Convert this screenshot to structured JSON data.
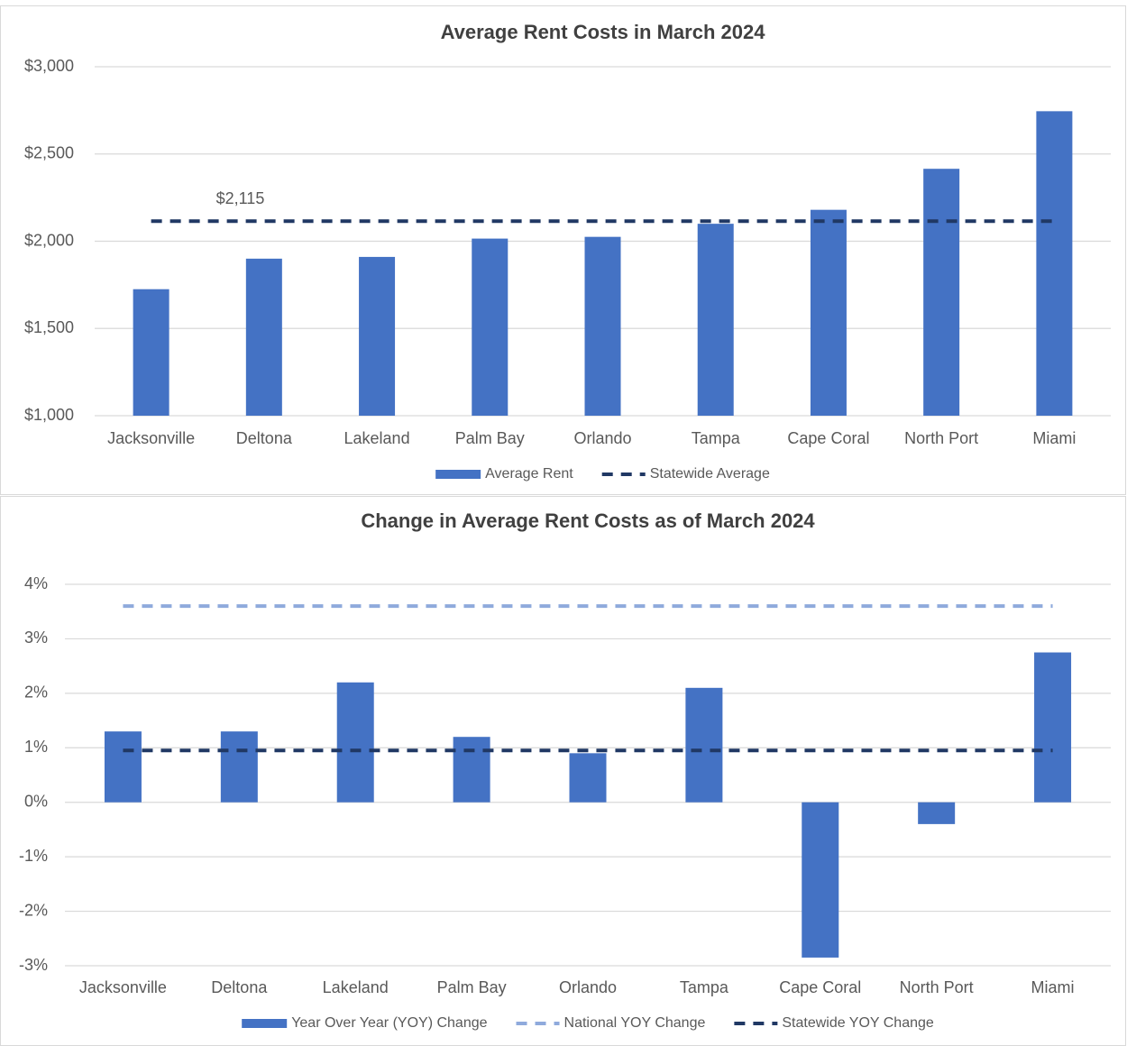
{
  "chart_data": [
    {
      "type": "bar",
      "title": "Average Rent Costs in March 2024",
      "categories": [
        "Jacksonville",
        "Deltona",
        "Lakeland",
        "Palm Bay",
        "Orlando",
        "Tampa",
        "Cape Coral",
        "North Port",
        "Miami"
      ],
      "series": [
        {
          "name": "Average Rent",
          "type": "bar",
          "color": "#4472c4",
          "values": [
            1725,
            1900,
            1910,
            2015,
            2025,
            2100,
            2180,
            2415,
            2745
          ]
        },
        {
          "name": "Statewide Average",
          "type": "line",
          "dashed": true,
          "color": "#203864",
          "values": [
            2115,
            2115,
            2115,
            2115,
            2115,
            2115,
            2115,
            2115,
            2115
          ]
        }
      ],
      "annotation": "$2,115",
      "ylim": [
        1000,
        3000
      ],
      "yticks": [
        {
          "value": 1000,
          "label": "$1,000"
        },
        {
          "value": 1500,
          "label": "$1,500"
        },
        {
          "value": 2000,
          "label": "$2,000"
        },
        {
          "value": 2500,
          "label": "$2,500"
        },
        {
          "value": 3000,
          "label": "$3,000"
        }
      ],
      "grid": true,
      "legend": "bottom"
    },
    {
      "type": "bar",
      "title": "Change in Average Rent Costs as of March 2024",
      "categories": [
        "Jacksonville",
        "Deltona",
        "Lakeland",
        "Palm Bay",
        "Orlando",
        "Tampa",
        "Cape Coral",
        "North Port",
        "Miami"
      ],
      "series": [
        {
          "name": "Year Over Year (YOY) Change",
          "type": "bar",
          "color": "#4472c4",
          "values": [
            1.3,
            1.3,
            2.2,
            1.2,
            0.9,
            2.1,
            -2.85,
            -0.4,
            2.75
          ]
        },
        {
          "name": "National YOY Change",
          "type": "line",
          "dashed": true,
          "color": "#8faadc",
          "values": [
            3.6,
            3.6,
            3.6,
            3.6,
            3.6,
            3.6,
            3.6,
            3.6,
            3.6
          ]
        },
        {
          "name": "Statewide YOY Change",
          "type": "line",
          "dashed": true,
          "color": "#203864",
          "values": [
            0.95,
            0.95,
            0.95,
            0.95,
            0.95,
            0.95,
            0.95,
            0.95,
            0.95
          ]
        }
      ],
      "ylim": [
        -3,
        4
      ],
      "yticks": [
        {
          "value": -3,
          "label": "-3%"
        },
        {
          "value": -2,
          "label": "-2%"
        },
        {
          "value": -1,
          "label": "-1%"
        },
        {
          "value": 0,
          "label": "0%"
        },
        {
          "value": 1,
          "label": "1%"
        },
        {
          "value": 2,
          "label": "2%"
        },
        {
          "value": 3,
          "label": "3%"
        },
        {
          "value": 4,
          "label": "4%"
        }
      ],
      "grid": true,
      "legend": "bottom"
    }
  ]
}
